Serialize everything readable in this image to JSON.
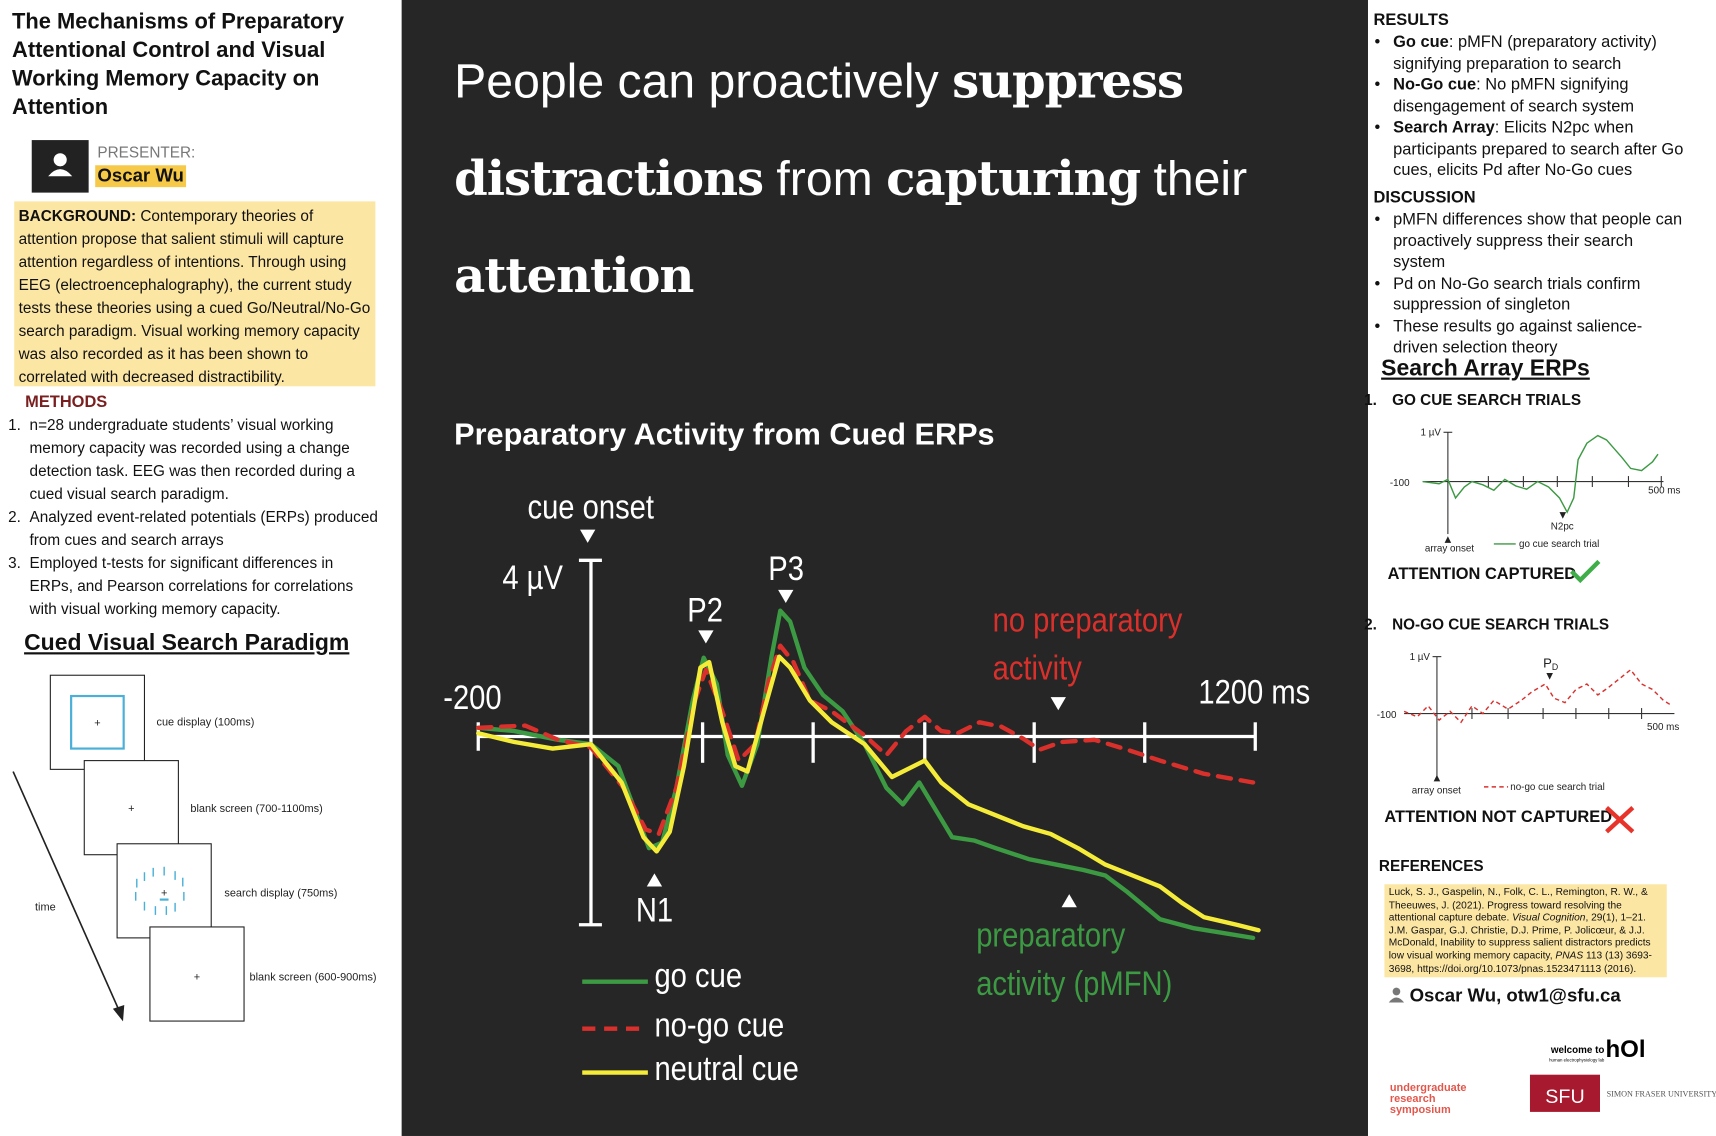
{
  "left": {
    "title": "The Mechanisms of Preparatory Attentional Control and Visual Working Memory Capacity on Attention",
    "presenter_label": "PRESENTER:",
    "presenter_name": "Oscar Wu",
    "background": {
      "label": "BACKGROUND:",
      "text": "Contemporary theories of attention propose that salient stimuli will capture attention regardless of intentions. Through using EEG (electroencephalography), the current study tests these theories using a cued Go/Neutral/No-Go search paradigm. Visual working memory capacity was also recorded as it has been shown to correlated with decreased distractibility."
    },
    "methods_heading": "METHODS",
    "methods": [
      "n=28 undergraduate students’ visual working memory capacity was recorded using a change detection task. EEG was then recorded during a cued visual search paradigm.",
      "Analyzed event-related potentials (ERPs) produced from cues and search arrays",
      "Employed t-tests for significant differences in ERPs, and Pearson correlations for correlations with visual working memory capacity."
    ],
    "paradigm": {
      "heading": "Cued Visual Search Paradigm",
      "steps": [
        "cue display (100ms)",
        "blank screen (700-1100ms)",
        "search display (750ms)",
        "blank screen (600-900ms)"
      ],
      "time_label": "time"
    }
  },
  "center": {
    "headline": [
      {
        "text": "People can proactively",
        "bold": false
      },
      {
        "text": "suppress",
        "bold": true
      },
      {
        "text": "distractions",
        "bold": true
      },
      {
        "text": "from",
        "bold": false
      },
      {
        "text": "capturing",
        "bold": true
      },
      {
        "text": "their",
        "bold": false
      },
      {
        "text": "attention",
        "bold": true
      }
    ],
    "chart_title": "Preparatory Activity from Cued ERPs",
    "erp": {
      "cue_onset": "cue onset",
      "y_label": "4 µV",
      "x_start": "-200",
      "x_end": "1200 ms",
      "peaks": [
        "P2",
        "P3",
        "N1"
      ],
      "no_prep": "no preparatory activity",
      "prep": "preparatory activity (pMFN)"
    },
    "series": [
      {
        "name": "go cue",
        "color": "#3c9a43"
      },
      {
        "name": "no-go cue",
        "color": "#d9302c"
      },
      {
        "name": "neutral cue",
        "color": "#f5ec3a"
      }
    ]
  },
  "right": {
    "results_heading": "RESULTS",
    "results": [
      {
        "term": "Go cue",
        "text": ": pMFN (preparatory activity) signifying preparation to search"
      },
      {
        "term": "No-Go cue",
        "text": ": No pMFN signifying disengagement of search system"
      },
      {
        "term": "Search Array",
        "text": ": Elicits N2pc when participants prepared to search after Go cues, elicits Pd after No-Go cues"
      }
    ],
    "discussion_heading": "DISCUSSION",
    "discussion": [
      "pMFN differences show that people can proactively suppress their search system",
      "Pd on No-Go search trials confirm suppression of singleton",
      "These results go against salience-driven selection theory"
    ],
    "erp_heading": "Search Array ERPs",
    "go": {
      "title": "GO CUE SEARCH TRIALS",
      "y_label": "1 µV",
      "x_start": "-100",
      "x_end": "500 ms",
      "component": "N2pc",
      "onset": "array onset",
      "legend": "go cue search trial",
      "verdict": "ATTENTION CAPTURED"
    },
    "nogo": {
      "title": "NO-GO CUE SEARCH TRIALS",
      "y_label": "1 µV",
      "x_start": "-100",
      "x_end": "500 ms",
      "component": {
        "main": "P",
        "sub": "D"
      },
      "onset": "array onset",
      "legend": "no-go cue search trial",
      "verdict": "ATTENTION NOT CAPTURED"
    },
    "references_heading": "REFERENCES",
    "references": [
      {
        "a": "Luck, S. J., Gaspelin, N., Folk, C. L., Remington, R. W., & Theeuwes, J. (2021). Progress toward resolving the attentional capture debate. ",
        "journal": "Visual Cognition",
        "b": ", 29(1), 1–21."
      },
      {
        "a": "J.M. Gaspar, G.J. Christie, D.J. Prime, P. Jolicœur, & J.J. McDonald, Inability to suppress salient distractors predicts low visual working memory capacity, ",
        "journal": "PNAS",
        "b": " 113 (13) 3693-3698, https://doi.org/10.1073/pnas.1523471113 (2016)."
      }
    ],
    "contact": "Oscar Wu, otw1@sfu.ca",
    "logos": {
      "hol_welcome": "welcome to",
      "hol_name": "hOl",
      "hol_sub": "human electrophysiology lab",
      "urs": "undergraduate research symposium",
      "sfu": "SFU",
      "sfu_name": "SIMON FRASER UNIVERSITY"
    }
  }
}
